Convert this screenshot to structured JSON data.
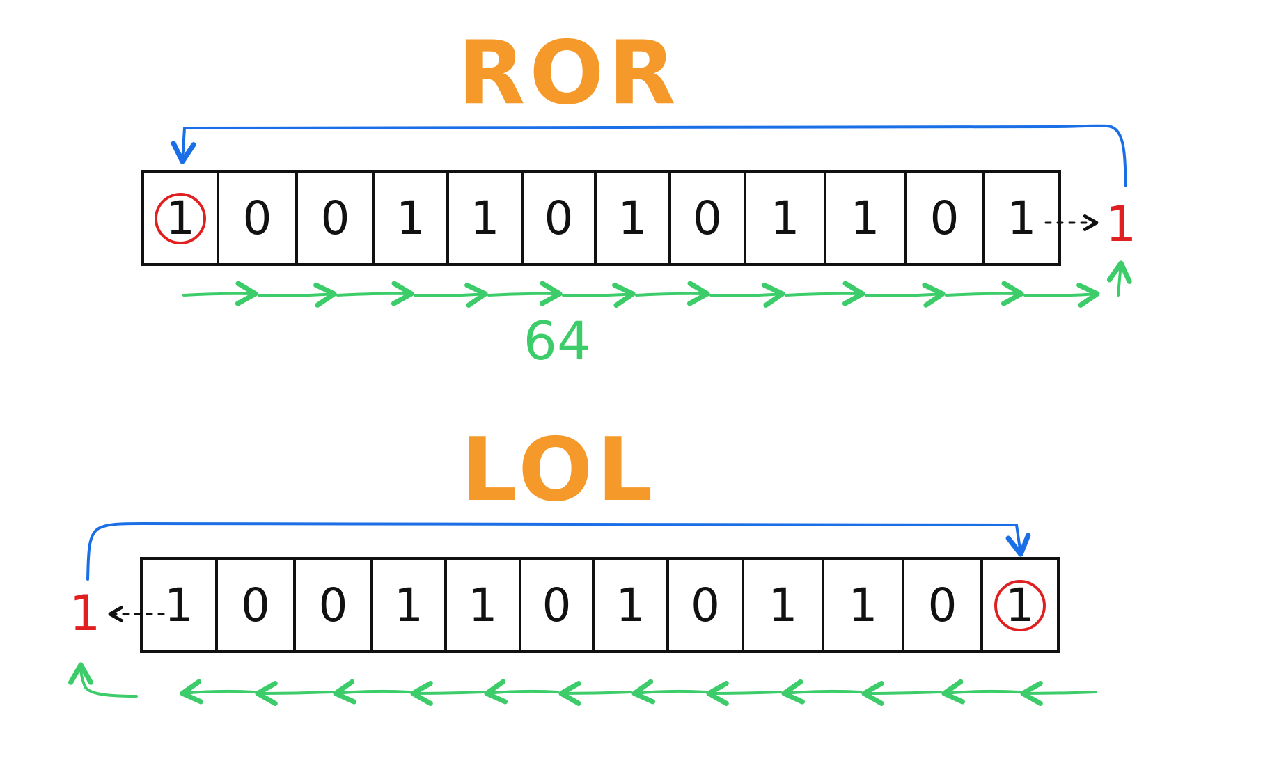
{
  "colors": {
    "title": "#f59a2a",
    "wrap_arrow": "#1a6fe6",
    "shift_arrow": "#3dcc6a",
    "carry_bit": "#e02020",
    "cell_border": "#111111",
    "bit_text": "#111111"
  },
  "ror": {
    "title": "ROR",
    "bits": [
      "1",
      "0",
      "0",
      "1",
      "1",
      "0",
      "1",
      "0",
      "1",
      "1",
      "0",
      "1"
    ],
    "highlighted_index": 0,
    "carry_bit": "1",
    "shift_label": "64",
    "direction": "right"
  },
  "rol": {
    "title": "LOL",
    "bits": [
      "1",
      "0",
      "0",
      "1",
      "1",
      "0",
      "1",
      "0",
      "1",
      "1",
      "0",
      "1"
    ],
    "highlighted_index": 11,
    "carry_bit": "1",
    "direction": "left"
  }
}
